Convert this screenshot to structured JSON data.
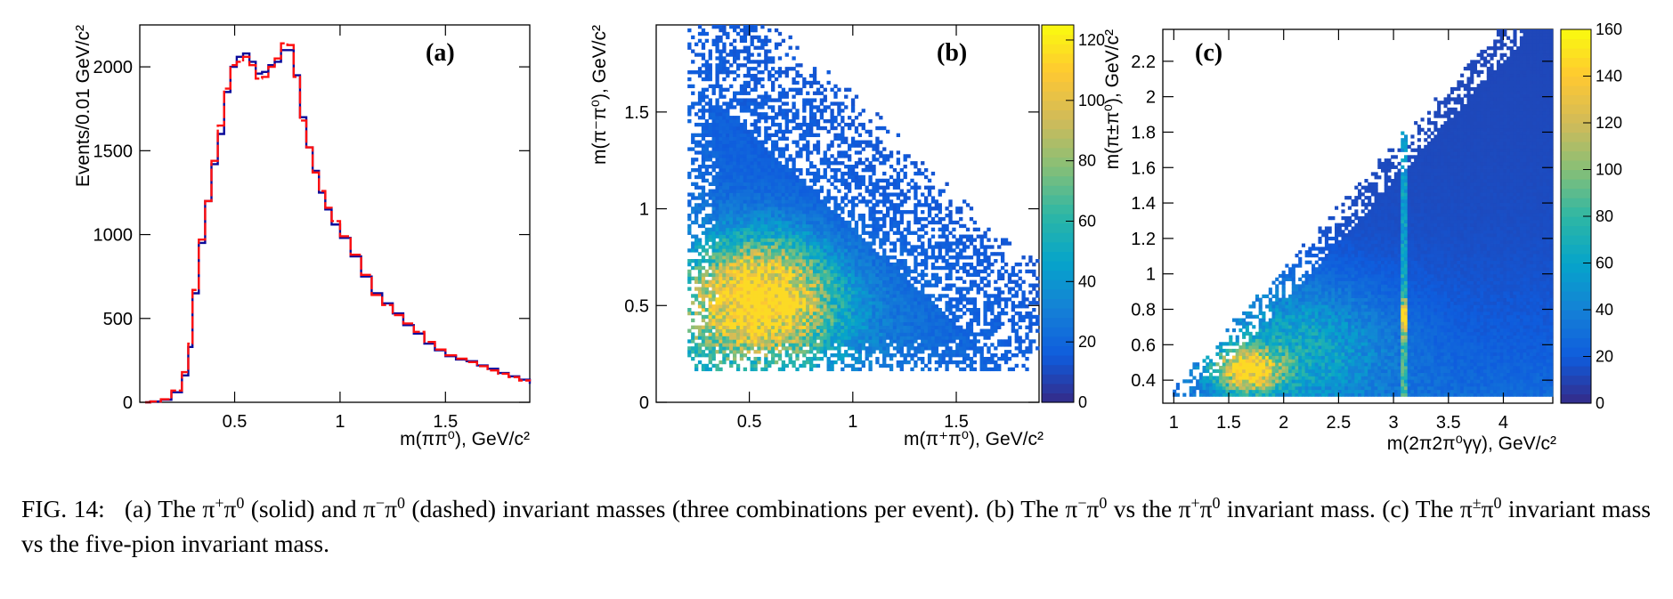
{
  "chart_data": [
    {
      "panel": "(a)",
      "type": "line",
      "xlabel": "m(ππ⁰), GeV/c²",
      "ylabel": "Events/0.01 GeV/c²",
      "xlim": [
        0.05,
        1.9
      ],
      "ylim": [
        0,
        2250
      ],
      "xticks": [
        "0.5",
        "1",
        "1.5"
      ],
      "xtick_values": [
        0.5,
        1.0,
        1.5
      ],
      "yticks": [
        "0",
        "500",
        "1000",
        "1500",
        "2000"
      ],
      "ytick_values": [
        0,
        500,
        1000,
        1500,
        2000
      ],
      "series": [
        {
          "name": "π+π0 (solid)",
          "color": "#0a0a9a",
          "style": "solid",
          "points": [
            [
              0.1,
              5
            ],
            [
              0.15,
              15
            ],
            [
              0.2,
              60
            ],
            [
              0.25,
              160
            ],
            [
              0.28,
              330
            ],
            [
              0.3,
              650
            ],
            [
              0.33,
              950
            ],
            [
              0.36,
              1200
            ],
            [
              0.39,
              1420
            ],
            [
              0.42,
              1600
            ],
            [
              0.45,
              1850
            ],
            [
              0.48,
              2000
            ],
            [
              0.51,
              2060
            ],
            [
              0.54,
              2080
            ],
            [
              0.57,
              2030
            ],
            [
              0.6,
              1960
            ],
            [
              0.63,
              1970
            ],
            [
              0.66,
              2010
            ],
            [
              0.69,
              2030
            ],
            [
              0.72,
              2100
            ],
            [
              0.75,
              2100
            ],
            [
              0.78,
              1950
            ],
            [
              0.81,
              1700
            ],
            [
              0.84,
              1520
            ],
            [
              0.87,
              1380
            ],
            [
              0.9,
              1250
            ],
            [
              0.93,
              1150
            ],
            [
              0.96,
              1060
            ],
            [
              1.0,
              980
            ],
            [
              1.05,
              870
            ],
            [
              1.1,
              750
            ],
            [
              1.15,
              650
            ],
            [
              1.2,
              590
            ],
            [
              1.25,
              530
            ],
            [
              1.3,
              460
            ],
            [
              1.35,
              410
            ],
            [
              1.4,
              350
            ],
            [
              1.45,
              310
            ],
            [
              1.5,
              275
            ],
            [
              1.55,
              255
            ],
            [
              1.6,
              245
            ],
            [
              1.65,
              220
            ],
            [
              1.7,
              200
            ],
            [
              1.75,
              175
            ],
            [
              1.8,
              155
            ],
            [
              1.85,
              135
            ],
            [
              1.9,
              110
            ]
          ]
        },
        {
          "name": "π−π0 (dashed)",
          "color": "#ff1010",
          "style": "dashed",
          "points": [
            [
              0.1,
              5
            ],
            [
              0.15,
              18
            ],
            [
              0.2,
              70
            ],
            [
              0.25,
              180
            ],
            [
              0.28,
              350
            ],
            [
              0.3,
              670
            ],
            [
              0.33,
              970
            ],
            [
              0.36,
              1200
            ],
            [
              0.39,
              1440
            ],
            [
              0.42,
              1650
            ],
            [
              0.45,
              1870
            ],
            [
              0.48,
              2010
            ],
            [
              0.51,
              2030
            ],
            [
              0.54,
              2060
            ],
            [
              0.57,
              2010
            ],
            [
              0.6,
              1930
            ],
            [
              0.63,
              1940
            ],
            [
              0.66,
              2000
            ],
            [
              0.69,
              2050
            ],
            [
              0.72,
              2140
            ],
            [
              0.75,
              2130
            ],
            [
              0.78,
              1940
            ],
            [
              0.81,
              1680
            ],
            [
              0.84,
              1520
            ],
            [
              0.87,
              1370
            ],
            [
              0.9,
              1260
            ],
            [
              0.93,
              1160
            ],
            [
              0.96,
              1080
            ],
            [
              1.0,
              990
            ],
            [
              1.05,
              880
            ],
            [
              1.1,
              760
            ],
            [
              1.15,
              640
            ],
            [
              1.2,
              580
            ],
            [
              1.25,
              520
            ],
            [
              1.3,
              470
            ],
            [
              1.35,
              420
            ],
            [
              1.4,
              360
            ],
            [
              1.45,
              315
            ],
            [
              1.5,
              280
            ],
            [
              1.55,
              260
            ],
            [
              1.6,
              240
            ],
            [
              1.65,
              215
            ],
            [
              1.7,
              190
            ],
            [
              1.75,
              170
            ],
            [
              1.8,
              150
            ],
            [
              1.85,
              130
            ],
            [
              1.9,
              125
            ]
          ]
        }
      ]
    },
    {
      "panel": "(b)",
      "type": "heatmap",
      "xlabel": "m(π⁺π⁰), GeV/c²",
      "ylabel": "m(π⁻π⁰), GeV/c²",
      "xlim": [
        0.05,
        1.9
      ],
      "ylim": [
        0,
        1.95
      ],
      "xticks": [
        "0.5",
        "1",
        "1.5"
      ],
      "xtick_values": [
        0.5,
        1.0,
        1.5
      ],
      "yticks": [
        "0",
        "0.5",
        "1",
        "1.5"
      ],
      "ytick_values": [
        0,
        0.5,
        1.0,
        1.5
      ],
      "zlim": [
        0,
        125
      ],
      "colorbar_ticks": [
        "0",
        "20",
        "40",
        "60",
        "80",
        "100",
        "120"
      ],
      "colorbar_tick_values": [
        0,
        20,
        40,
        60,
        80,
        100,
        120
      ],
      "peak": {
        "x": 0.55,
        "y": 0.55,
        "z": 110
      }
    },
    {
      "panel": "(c)",
      "type": "heatmap",
      "xlabel": "m(2π2π⁰γγ), GeV/c²",
      "ylabel": "m(π±π⁰), GeV/c²",
      "xlim": [
        0.9,
        4.45
      ],
      "ylim": [
        0.27,
        2.38
      ],
      "xticks": [
        "1",
        "1.5",
        "2",
        "2.5",
        "3",
        "3.5",
        "4"
      ],
      "xtick_values": [
        1.0,
        1.5,
        2.0,
        2.5,
        3.0,
        3.5,
        4.0
      ],
      "yticks": [
        "0.4",
        "0.6",
        "0.8",
        "1",
        "1.2",
        "1.4",
        "1.6",
        "1.8",
        "2",
        "2.2"
      ],
      "ytick_values": [
        0.4,
        0.6,
        0.8,
        1.0,
        1.2,
        1.4,
        1.6,
        1.8,
        2.0,
        2.2
      ],
      "zlim": [
        0,
        160
      ],
      "colorbar_ticks": [
        "0",
        "20",
        "40",
        "60",
        "80",
        "100",
        "120",
        "140",
        "160"
      ],
      "colorbar_tick_values": [
        0,
        20,
        40,
        60,
        80,
        100,
        120,
        140,
        160
      ],
      "peak": {
        "x": 1.65,
        "y": 0.45,
        "z": 110
      },
      "band": {
        "x": 3.097,
        "y": 0.75
      }
    }
  ],
  "colormap": [
    "#352a87",
    "#0f5cdd",
    "#1481d6",
    "#06a4ca",
    "#2eb7a4",
    "#87bf77",
    "#d1bb59",
    "#fec832",
    "#f9fb0e"
  ],
  "caption": {
    "fig": "FIG. 14:",
    "text1": "(a) The π",
    "sup1": "+",
    "text2": "π",
    "sup2": "0",
    "text3": " (solid) and π",
    "sup3": "−",
    "text4": "π",
    "sup4": "0",
    "text5": " (dashed) invariant masses (three combinations per event). (b) The π",
    "sup5": "−",
    "text6": "π",
    "sup6": "0",
    "text7": " vs the π",
    "sup7": "+",
    "text8": "π",
    "sup8": "0",
    "text9": " invariant mass. (c) The π",
    "sup9": "±",
    "text10": "π",
    "sup10": "0",
    "text11": " invariant mass vs the five-pion invariant mass."
  }
}
